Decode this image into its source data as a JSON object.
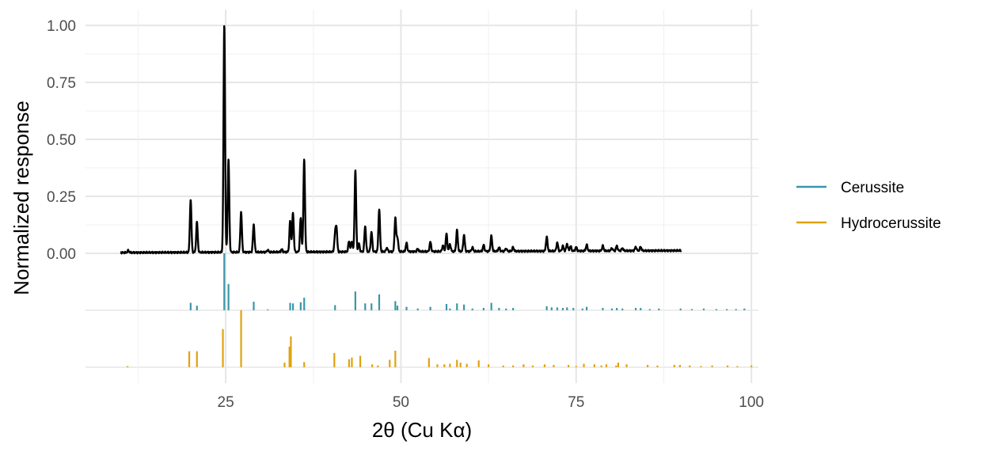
{
  "chart_data": {
    "type": "line",
    "title": "",
    "xlabel": "2θ (Cu Kα)",
    "ylabel": "Normalized response",
    "xlim": [
      5,
      101
    ],
    "ylim": [
      -0.57,
      1.07
    ],
    "x_ticks": [
      25,
      50,
      75,
      100
    ],
    "x_tick_labels": [
      "25",
      "50",
      "75",
      "100"
    ],
    "y_ticks": [
      0,
      0.25,
      0.5,
      0.75,
      1
    ],
    "y_tick_labels": [
      "0.00",
      "0.25",
      "0.50",
      "0.75",
      "1.00"
    ],
    "grid": true,
    "legend_position": "right",
    "pattern_baselines": {
      "Cerussite": -0.25,
      "Hydrocerussite": -0.5
    },
    "measured": {
      "color": "#000000",
      "baseline": 0.003,
      "end_baseline": 0.012,
      "x_range": [
        10,
        90
      ],
      "peaks": [
        {
          "x": 11.1,
          "y": 0.012
        },
        {
          "x": 20.0,
          "y": 0.235
        },
        {
          "x": 20.9,
          "y": 0.135
        },
        {
          "x": 24.8,
          "y": 1.0
        },
        {
          "x": 25.4,
          "y": 0.41
        },
        {
          "x": 27.2,
          "y": 0.18
        },
        {
          "x": 29.0,
          "y": 0.125
        },
        {
          "x": 31.0,
          "y": 0.012
        },
        {
          "x": 33.0,
          "y": 0.015
        },
        {
          "x": 34.2,
          "y": 0.14
        },
        {
          "x": 34.6,
          "y": 0.175
        },
        {
          "x": 35.7,
          "y": 0.15
        },
        {
          "x": 36.2,
          "y": 0.41
        },
        {
          "x": 40.6,
          "y": 0.07
        },
        {
          "x": 40.8,
          "y": 0.105
        },
        {
          "x": 42.6,
          "y": 0.05
        },
        {
          "x": 43.0,
          "y": 0.05
        },
        {
          "x": 43.5,
          "y": 0.36
        },
        {
          "x": 44.0,
          "y": 0.04
        },
        {
          "x": 44.9,
          "y": 0.115
        },
        {
          "x": 45.8,
          "y": 0.09
        },
        {
          "x": 46.9,
          "y": 0.19
        },
        {
          "x": 48.0,
          "y": 0.02
        },
        {
          "x": 49.2,
          "y": 0.15
        },
        {
          "x": 49.5,
          "y": 0.065
        },
        {
          "x": 50.8,
          "y": 0.04
        },
        {
          "x": 52.4,
          "y": 0.015
        },
        {
          "x": 54.2,
          "y": 0.045
        },
        {
          "x": 56.0,
          "y": 0.03
        },
        {
          "x": 56.5,
          "y": 0.08
        },
        {
          "x": 57.0,
          "y": 0.035
        },
        {
          "x": 58.0,
          "y": 0.095
        },
        {
          "x": 59.0,
          "y": 0.075
        },
        {
          "x": 60.2,
          "y": 0.02
        },
        {
          "x": 61.8,
          "y": 0.03
        },
        {
          "x": 62.9,
          "y": 0.07
        },
        {
          "x": 64.0,
          "y": 0.02
        },
        {
          "x": 65.0,
          "y": 0.015
        },
        {
          "x": 66.0,
          "y": 0.02
        },
        {
          "x": 70.8,
          "y": 0.065
        },
        {
          "x": 72.3,
          "y": 0.04
        },
        {
          "x": 73.1,
          "y": 0.025
        },
        {
          "x": 73.7,
          "y": 0.035
        },
        {
          "x": 74.2,
          "y": 0.025
        },
        {
          "x": 75.0,
          "y": 0.02
        },
        {
          "x": 76.5,
          "y": 0.03
        },
        {
          "x": 78.8,
          "y": 0.025
        },
        {
          "x": 80.1,
          "y": 0.015
        },
        {
          "x": 80.8,
          "y": 0.025
        },
        {
          "x": 81.6,
          "y": 0.015
        },
        {
          "x": 83.5,
          "y": 0.02
        },
        {
          "x": 84.2,
          "y": 0.02
        }
      ]
    },
    "series": [
      {
        "name": "Cerussite",
        "color": "#3a96a8",
        "sticks": [
          [
            24.8,
            1.0
          ],
          [
            25.4,
            0.46
          ],
          [
            20.0,
            0.13
          ],
          [
            20.9,
            0.08
          ],
          [
            29.0,
            0.15
          ],
          [
            31.0,
            0.015
          ],
          [
            34.2,
            0.13
          ],
          [
            34.6,
            0.12
          ],
          [
            35.7,
            0.14
          ],
          [
            36.2,
            0.22
          ],
          [
            40.6,
            0.09
          ],
          [
            43.5,
            0.33
          ],
          [
            44.9,
            0.12
          ],
          [
            45.8,
            0.12
          ],
          [
            46.9,
            0.28
          ],
          [
            49.2,
            0.16
          ],
          [
            49.5,
            0.08
          ],
          [
            50.8,
            0.06
          ],
          [
            52.4,
            0.03
          ],
          [
            54.2,
            0.06
          ],
          [
            56.5,
            0.11
          ],
          [
            57.0,
            0.03
          ],
          [
            58.0,
            0.12
          ],
          [
            59.0,
            0.1
          ],
          [
            60.2,
            0.03
          ],
          [
            61.8,
            0.04
          ],
          [
            62.9,
            0.13
          ],
          [
            64.0,
            0.04
          ],
          [
            65.0,
            0.03
          ],
          [
            66.0,
            0.04
          ],
          [
            70.8,
            0.07
          ],
          [
            71.5,
            0.05
          ],
          [
            72.3,
            0.05
          ],
          [
            73.1,
            0.04
          ],
          [
            73.7,
            0.05
          ],
          [
            74.6,
            0.04
          ],
          [
            75.9,
            0.03
          ],
          [
            76.5,
            0.06
          ],
          [
            78.8,
            0.04
          ],
          [
            80.1,
            0.03
          ],
          [
            80.8,
            0.04
          ],
          [
            81.6,
            0.03
          ],
          [
            83.5,
            0.04
          ],
          [
            84.2,
            0.04
          ],
          [
            85.5,
            0.02
          ],
          [
            86.8,
            0.03
          ],
          [
            89.9,
            0.03
          ],
          [
            91.5,
            0.02
          ],
          [
            93.2,
            0.03
          ],
          [
            95.0,
            0.02
          ],
          [
            96.5,
            0.02
          ],
          [
            97.8,
            0.02
          ],
          [
            99.0,
            0.03
          ]
        ]
      },
      {
        "name": "Hydrocerussite",
        "color": "#e0a20e",
        "sticks": [
          [
            11.0,
            0.02
          ],
          [
            19.8,
            0.28
          ],
          [
            20.9,
            0.28
          ],
          [
            24.6,
            0.67
          ],
          [
            27.2,
            1.0
          ],
          [
            33.4,
            0.08
          ],
          [
            34.1,
            0.36
          ],
          [
            34.3,
            0.54
          ],
          [
            36.2,
            0.09
          ],
          [
            40.5,
            0.25
          ],
          [
            42.6,
            0.14
          ],
          [
            43.0,
            0.17
          ],
          [
            44.2,
            0.2
          ],
          [
            45.9,
            0.05
          ],
          [
            46.7,
            0.03
          ],
          [
            48.4,
            0.13
          ],
          [
            49.2,
            0.29
          ],
          [
            54.0,
            0.16
          ],
          [
            55.2,
            0.05
          ],
          [
            56.2,
            0.05
          ],
          [
            57.0,
            0.06
          ],
          [
            58.0,
            0.13
          ],
          [
            58.5,
            0.08
          ],
          [
            59.4,
            0.06
          ],
          [
            61.1,
            0.12
          ],
          [
            62.5,
            0.05
          ],
          [
            64.6,
            0.03
          ],
          [
            66.0,
            0.03
          ],
          [
            67.5,
            0.05
          ],
          [
            68.8,
            0.03
          ],
          [
            70.5,
            0.05
          ],
          [
            71.8,
            0.04
          ],
          [
            73.9,
            0.04
          ],
          [
            75.0,
            0.02
          ],
          [
            76.1,
            0.06
          ],
          [
            77.6,
            0.05
          ],
          [
            78.6,
            0.03
          ],
          [
            79.3,
            0.05
          ],
          [
            80.7,
            0.03
          ],
          [
            81.0,
            0.08
          ],
          [
            82.2,
            0.05
          ],
          [
            85.2,
            0.04
          ],
          [
            86.6,
            0.03
          ],
          [
            89.0,
            0.04
          ],
          [
            89.8,
            0.04
          ],
          [
            91.2,
            0.03
          ],
          [
            92.8,
            0.02
          ],
          [
            94.4,
            0.03
          ],
          [
            96.6,
            0.03
          ],
          [
            98.0,
            0.02
          ],
          [
            100.0,
            0.03
          ]
        ]
      }
    ]
  }
}
